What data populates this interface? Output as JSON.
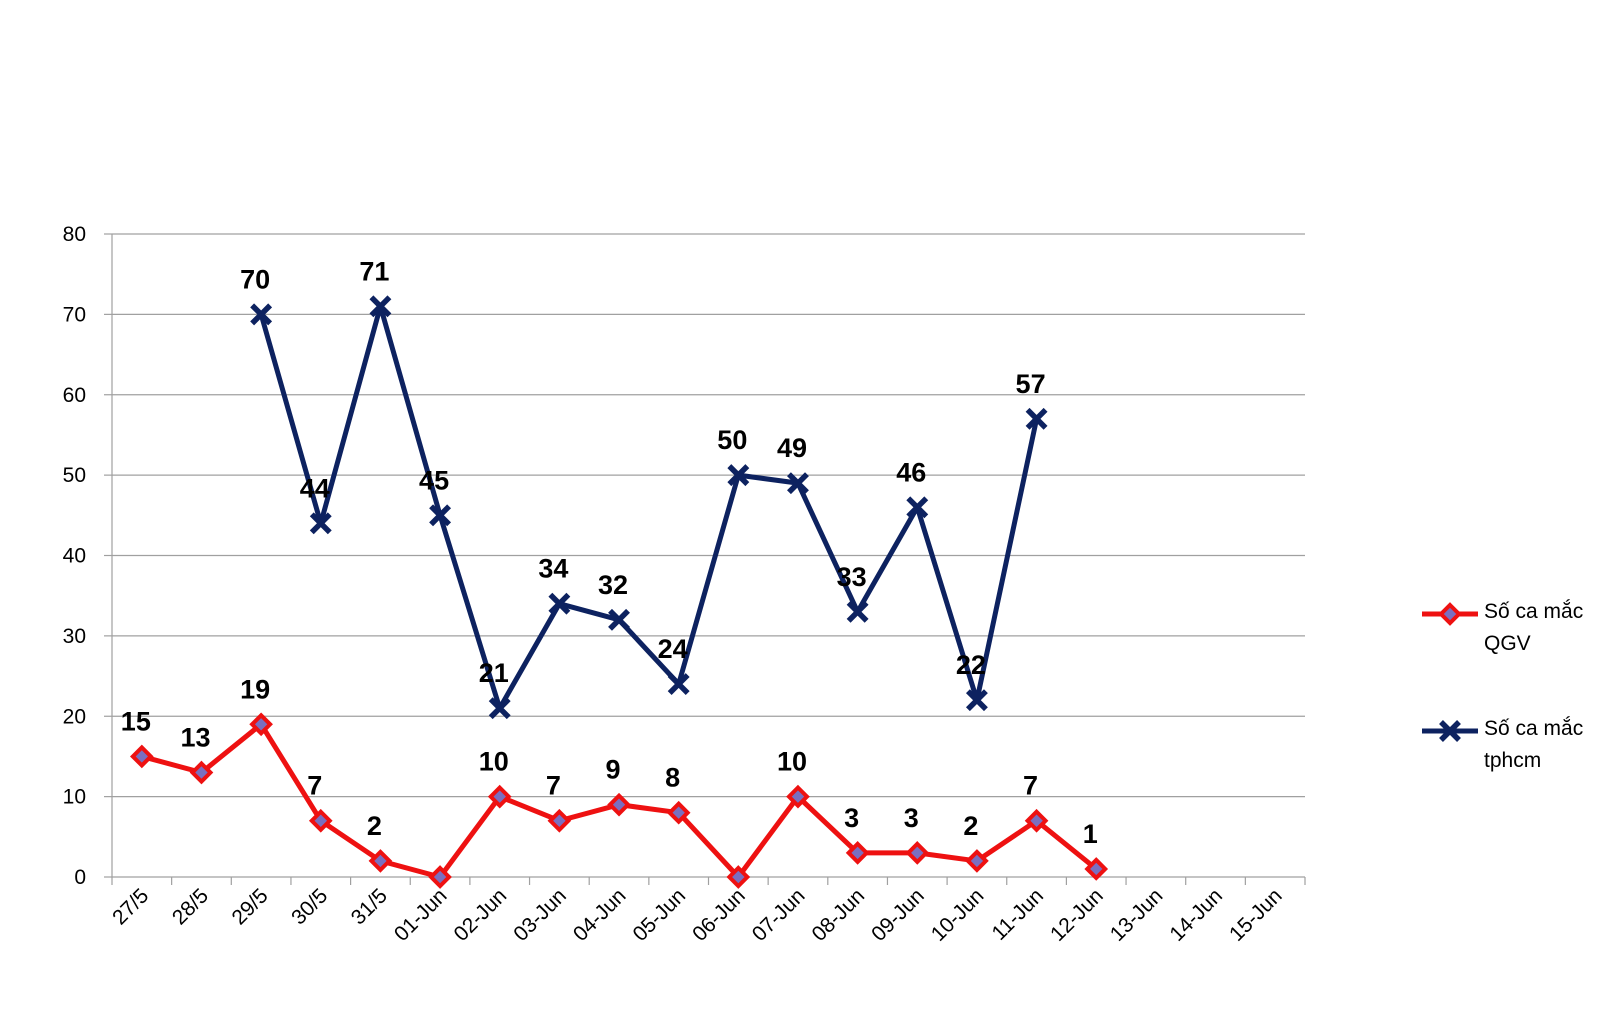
{
  "chart_data": {
    "type": "line",
    "categories": [
      "27/5",
      "28/5",
      "29/5",
      "30/5",
      "31/5",
      "01-Jun",
      "02-Jun",
      "03-Jun",
      "04-Jun",
      "05-Jun",
      "06-Jun",
      "07-Jun",
      "08-Jun",
      "09-Jun",
      "10-Jun",
      "11-Jun",
      "12-Jun",
      "13-Jun",
      "14-Jun",
      "15-Jun"
    ],
    "series": [
      {
        "name": "Số ca mắc QGV",
        "color": "#ee1111",
        "marker": "diamond",
        "values": [
          15,
          13,
          19,
          7,
          2,
          0,
          10,
          7,
          9,
          8,
          0,
          10,
          3,
          3,
          2,
          7,
          1,
          null,
          null,
          null
        ],
        "value_labels": [
          "15",
          "13",
          "19",
          "7",
          "2",
          null,
          "10",
          "7",
          "9",
          "8",
          null,
          "10",
          "3",
          "3",
          "2",
          "7",
          "1",
          null,
          null,
          null
        ]
      },
      {
        "name": "Số ca mắc tphcm",
        "color": "#0d2260",
        "marker": "x",
        "values": [
          null,
          null,
          70,
          44,
          71,
          45,
          21,
          34,
          32,
          24,
          50,
          49,
          33,
          46,
          22,
          57,
          null,
          null,
          null,
          null
        ]
      }
    ],
    "ylim": [
      0,
      80
    ],
    "yticks": [
      0,
      10,
      20,
      30,
      40,
      50,
      60,
      70,
      80
    ],
    "grid": true,
    "legend": "right"
  }
}
